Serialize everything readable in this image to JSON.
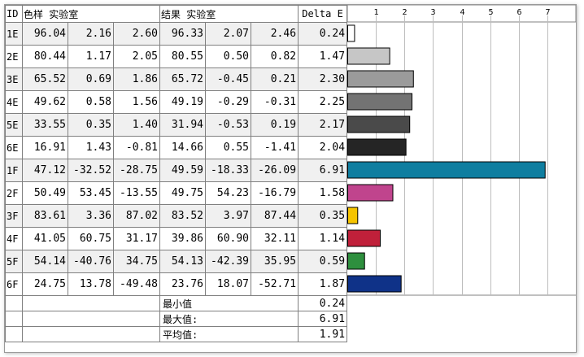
{
  "headers": {
    "id": "ID",
    "sample": "色样 实验室",
    "result": "结果 实验室",
    "delta": "Delta E"
  },
  "rows": [
    {
      "id": "1E",
      "s": [
        "96.04",
        "2.16",
        "2.60"
      ],
      "r": [
        "96.33",
        "2.07",
        "2.46"
      ],
      "de": "0.24",
      "color": "#ffffff"
    },
    {
      "id": "2E",
      "s": [
        "80.44",
        "1.17",
        "2.05"
      ],
      "r": [
        "80.55",
        "0.50",
        "0.82"
      ],
      "de": "1.47",
      "color": "#c6c6c6"
    },
    {
      "id": "3E",
      "s": [
        "65.52",
        "0.69",
        "1.86"
      ],
      "r": [
        "65.72",
        "-0.45",
        "0.21"
      ],
      "de": "2.30",
      "color": "#9b9b9b"
    },
    {
      "id": "4E",
      "s": [
        "49.62",
        "0.58",
        "1.56"
      ],
      "r": [
        "49.19",
        "-0.29",
        "-0.31"
      ],
      "de": "2.25",
      "color": "#737373"
    },
    {
      "id": "5E",
      "s": [
        "33.55",
        "0.35",
        "1.40"
      ],
      "r": [
        "31.94",
        "-0.53",
        "0.19"
      ],
      "de": "2.17",
      "color": "#4a4a4a"
    },
    {
      "id": "6E",
      "s": [
        "16.91",
        "1.43",
        "-0.81"
      ],
      "r": [
        "14.66",
        "0.55",
        "-1.41"
      ],
      "de": "2.04",
      "color": "#252525"
    },
    {
      "id": "1F",
      "s": [
        "47.12",
        "-32.52",
        "-28.75"
      ],
      "r": [
        "49.59",
        "-18.33",
        "-26.09"
      ],
      "de": "6.91",
      "color": "#0f7ea0"
    },
    {
      "id": "2F",
      "s": [
        "50.49",
        "53.45",
        "-13.55"
      ],
      "r": [
        "49.75",
        "54.23",
        "-16.79"
      ],
      "de": "1.58",
      "color": "#c0448d"
    },
    {
      "id": "3F",
      "s": [
        "83.61",
        "3.36",
        "87.02"
      ],
      "r": [
        "83.52",
        "3.97",
        "87.44"
      ],
      "de": "0.35",
      "color": "#f6c400"
    },
    {
      "id": "4F",
      "s": [
        "41.05",
        "60.75",
        "31.17"
      ],
      "r": [
        "39.86",
        "60.90",
        "32.11"
      ],
      "de": "1.14",
      "color": "#c0203a"
    },
    {
      "id": "5F",
      "s": [
        "54.14",
        "-40.76",
        "34.75"
      ],
      "r": [
        "54.13",
        "-42.39",
        "35.95"
      ],
      "de": "0.59",
      "color": "#2e8f3e"
    },
    {
      "id": "6F",
      "s": [
        "24.75",
        "13.78",
        "-49.48"
      ],
      "r": [
        "23.76",
        "18.07",
        "-52.71"
      ],
      "de": "1.87",
      "color": "#0f3288"
    }
  ],
  "summary": [
    {
      "label": "最小值",
      "value": "0.24"
    },
    {
      "label": "最大值:",
      "value": "6.91"
    },
    {
      "label": "平均值:",
      "value": "1.91"
    }
  ],
  "chart_data": {
    "type": "bar",
    "orientation": "horizontal",
    "categories": [
      "1E",
      "2E",
      "3E",
      "4E",
      "5E",
      "6E",
      "1F",
      "2F",
      "3F",
      "4F",
      "5F",
      "6F"
    ],
    "values": [
      0.24,
      1.47,
      2.3,
      2.25,
      2.17,
      2.04,
      6.91,
      1.58,
      0.35,
      1.14,
      0.59,
      1.87
    ],
    "ticks": [
      "1",
      "2",
      "3",
      "4",
      "5",
      "6",
      "7"
    ],
    "xlim": [
      0,
      8
    ],
    "grid": true
  }
}
